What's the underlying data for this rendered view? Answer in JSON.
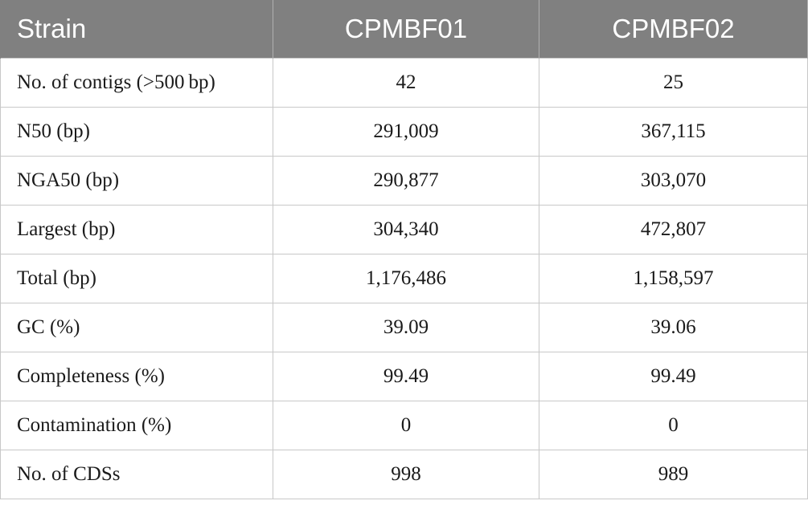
{
  "table": {
    "headers": [
      "Strain",
      "CPMBF01",
      "CPMBF02"
    ],
    "rows": [
      {
        "label": "No. of contigs (>500 bp)",
        "cpmbf01": "42",
        "cpmbf02": "25"
      },
      {
        "label": "N50 (bp)",
        "cpmbf01": "291,009",
        "cpmbf02": "367,115"
      },
      {
        "label": "NGA50 (bp)",
        "cpmbf01": "290,877",
        "cpmbf02": "303,070"
      },
      {
        "label": "Largest (bp)",
        "cpmbf01": "304,340",
        "cpmbf02": "472,807"
      },
      {
        "label": "Total (bp)",
        "cpmbf01": "1,176,486",
        "cpmbf02": "1,158,597"
      },
      {
        "label": "GC (%)",
        "cpmbf01": "39.09",
        "cpmbf02": "39.06"
      },
      {
        "label": "Completeness (%)",
        "cpmbf01": "99.49",
        "cpmbf02": "99.49"
      },
      {
        "label": "Contamination (%)",
        "cpmbf01": "0",
        "cpmbf02": "0"
      },
      {
        "label": "No. of CDSs",
        "cpmbf01": "998",
        "cpmbf02": "989"
      }
    ]
  },
  "colors": {
    "header_bg": "#808080",
    "header_text": "#ffffff",
    "grid_line": "#c8c8c8"
  }
}
